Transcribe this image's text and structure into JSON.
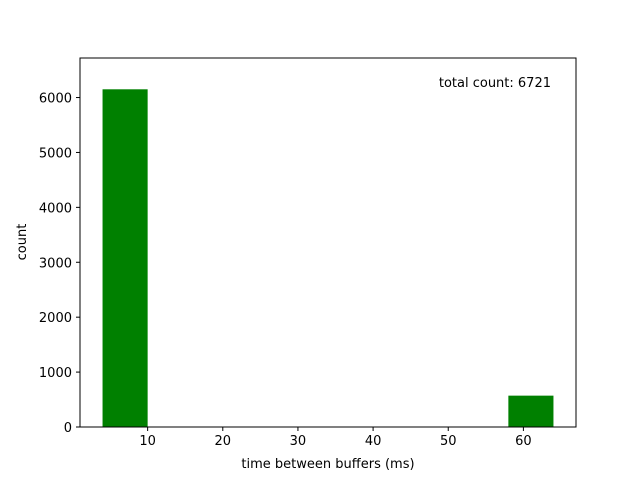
{
  "chart_data": {
    "type": "bar",
    "subtype": "histogram",
    "xlabel": "time between buffers (ms)",
    "ylabel": "count",
    "annotation": "total count: 6721",
    "legend": "none",
    "grid": false,
    "xlim": [
      1.0,
      67.0
    ],
    "ylim": [
      0,
      6720
    ],
    "xticks": [
      10,
      20,
      30,
      40,
      50,
      60
    ],
    "yticks": [
      0,
      1000,
      2000,
      3000,
      4000,
      5000,
      6000
    ],
    "bin_width": 6.0,
    "bars": [
      {
        "x0": 4.0,
        "x1": 10.0,
        "value": 6150
      },
      {
        "x0": 58.0,
        "x1": 64.0,
        "value": 571
      }
    ],
    "bar_color": "#008000"
  }
}
